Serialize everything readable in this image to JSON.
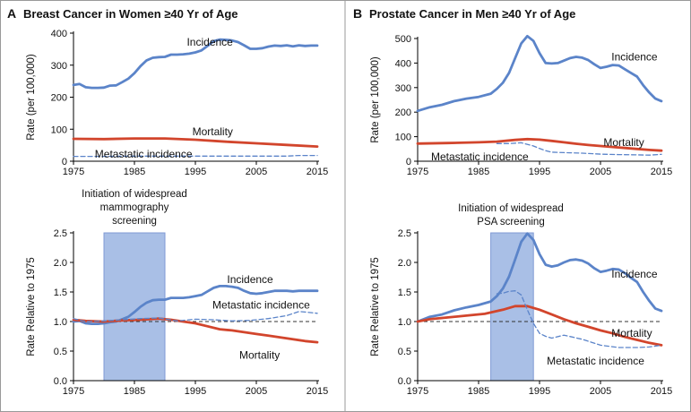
{
  "colors": {
    "incidence": "#5b84c9",
    "mortality": "#d2452c",
    "metastatic": "#5b84c9",
    "band": "#a9bfe6",
    "reference": "#333333",
    "divider": "#999999"
  },
  "panels": [
    {
      "letter": "A",
      "title": "Breast Cancer in Women ≥40 Yr of Age",
      "annotation": [
        "Initiation of widespread",
        "mammography",
        "screening"
      ],
      "band": [
        1980,
        1990
      ]
    },
    {
      "letter": "B",
      "title": "Prostate Cancer in Men ≥40 Yr of Age",
      "annotation": [
        "Initiation of widespread",
        "PSA screening"
      ],
      "band": [
        1987,
        1994
      ]
    }
  ],
  "chart_data": [
    {
      "type": "line",
      "panel": "A-top",
      "ylabel": "Rate (per 100,000)",
      "xlim": [
        1975,
        2015
      ],
      "ylim": [
        0,
        400
      ],
      "xticks": [
        1975,
        1985,
        1995,
        2005,
        2015
      ],
      "yticks": [
        0,
        100,
        200,
        300,
        400
      ],
      "series": [
        {
          "name": "Incidence",
          "style": "solid",
          "x": [
            1975,
            1976,
            1977,
            1978,
            1979,
            1980,
            1981,
            1982,
            1983,
            1984,
            1985,
            1986,
            1987,
            1988,
            1989,
            1990,
            1991,
            1992,
            1993,
            1994,
            1995,
            1996,
            1997,
            1998,
            1999,
            2000,
            2001,
            2002,
            2003,
            2004,
            2005,
            2006,
            2007,
            2008,
            2009,
            2010,
            2011,
            2012,
            2013,
            2014,
            2015
          ],
          "y": [
            238,
            241,
            231,
            229,
            229,
            230,
            236,
            237,
            247,
            258,
            275,
            297,
            315,
            323,
            325,
            326,
            333,
            333,
            334,
            336,
            340,
            346,
            360,
            375,
            380,
            379,
            377,
            372,
            362,
            351,
            351,
            353,
            358,
            361,
            360,
            362,
            359,
            362,
            360,
            361,
            361
          ]
        },
        {
          "name": "Mortality",
          "style": "solid",
          "x": [
            1975,
            1980,
            1985,
            1990,
            1995,
            2000,
            2005,
            2010,
            2015
          ],
          "y": [
            70,
            69,
            71,
            71,
            67,
            61,
            56,
            51,
            46
          ]
        },
        {
          "name": "Metastatic incidence",
          "style": "dashed",
          "x": [
            1975,
            1980,
            1985,
            1990,
            1995,
            2000,
            2005,
            2010,
            2012,
            2015
          ],
          "y": [
            15,
            15,
            16,
            16,
            16,
            16,
            16,
            16,
            18,
            18
          ]
        }
      ]
    },
    {
      "type": "line",
      "panel": "A-bottom",
      "ylabel": "Rate Relative to 1975",
      "xlim": [
        1975,
        2015
      ],
      "ylim": [
        0,
        2.5
      ],
      "xticks": [
        1975,
        1985,
        1995,
        2005,
        2015
      ],
      "yticks": [
        0.0,
        0.5,
        1.0,
        1.5,
        2.0,
        2.5
      ],
      "reference": 1.0,
      "series": [
        {
          "name": "Incidence",
          "style": "solid",
          "x": [
            1975,
            1976,
            1977,
            1978,
            1979,
            1980,
            1981,
            1982,
            1983,
            1984,
            1985,
            1986,
            1987,
            1988,
            1989,
            1990,
            1991,
            1992,
            1993,
            1994,
            1995,
            1996,
            1997,
            1998,
            1999,
            2000,
            2001,
            2002,
            2003,
            2004,
            2005,
            2006,
            2007,
            2008,
            2009,
            2010,
            2011,
            2012,
            2013,
            2014,
            2015
          ],
          "y": [
            1.0,
            1.01,
            0.97,
            0.96,
            0.96,
            0.97,
            0.99,
            1.0,
            1.04,
            1.08,
            1.16,
            1.25,
            1.32,
            1.36,
            1.37,
            1.37,
            1.4,
            1.4,
            1.4,
            1.41,
            1.43,
            1.45,
            1.51,
            1.57,
            1.6,
            1.6,
            1.59,
            1.57,
            1.52,
            1.48,
            1.47,
            1.48,
            1.5,
            1.52,
            1.52,
            1.52,
            1.51,
            1.52,
            1.52,
            1.52,
            1.52
          ]
        },
        {
          "name": "Mortality",
          "style": "solid",
          "x": [
            1975,
            1977,
            1980,
            1983,
            1986,
            1989,
            1991,
            1993,
            1995,
            1997,
            1999,
            2001,
            2003,
            2005,
            2007,
            2009,
            2011,
            2013,
            2015
          ],
          "y": [
            1.03,
            1.01,
            1.0,
            1.02,
            1.03,
            1.05,
            1.03,
            1.0,
            0.97,
            0.92,
            0.87,
            0.85,
            0.82,
            0.79,
            0.76,
            0.73,
            0.7,
            0.67,
            0.65
          ]
        },
        {
          "name": "Metastatic incidence",
          "style": "dashed",
          "x": [
            1975,
            1977,
            1980,
            1983,
            1986,
            1989,
            1992,
            1995,
            1998,
            2001,
            2004,
            2007,
            2010,
            2012,
            2013,
            2015
          ],
          "y": [
            1.05,
            1.0,
            1.01,
            1.03,
            1.05,
            1.06,
            1.01,
            1.04,
            1.03,
            1.01,
            1.02,
            1.05,
            1.1,
            1.17,
            1.16,
            1.14
          ]
        }
      ]
    },
    {
      "type": "line",
      "panel": "B-top",
      "ylabel": "Rate (per 100,000)",
      "xlim": [
        1975,
        2015
      ],
      "ylim": [
        0,
        500
      ],
      "xticks": [
        1975,
        1985,
        1995,
        2005,
        2015
      ],
      "yticks": [
        0,
        100,
        200,
        300,
        400,
        500
      ],
      "series": [
        {
          "name": "Incidence",
          "style": "solid",
          "x": [
            1975,
            1977,
            1979,
            1981,
            1983,
            1985,
            1987,
            1988,
            1989,
            1990,
            1991,
            1992,
            1993,
            1994,
            1995,
            1996,
            1997,
            1998,
            1999,
            2000,
            2001,
            2002,
            2003,
            2004,
            2005,
            2006,
            2007,
            2008,
            2009,
            2010,
            2011,
            2012,
            2013,
            2014,
            2015
          ],
          "y": [
            205,
            220,
            230,
            245,
            255,
            262,
            275,
            295,
            320,
            360,
            420,
            480,
            510,
            490,
            440,
            400,
            398,
            400,
            410,
            420,
            425,
            422,
            412,
            395,
            380,
            385,
            392,
            390,
            375,
            360,
            345,
            310,
            280,
            255,
            245
          ]
        },
        {
          "name": "Mortality",
          "style": "solid",
          "x": [
            1975,
            1980,
            1985,
            1988,
            1991,
            1993,
            1995,
            1997,
            1999,
            2001,
            2003,
            2005,
            2007,
            2009,
            2011,
            2013,
            2015
          ],
          "y": [
            72,
            74,
            77,
            80,
            87,
            90,
            88,
            83,
            77,
            71,
            66,
            62,
            58,
            54,
            50,
            46,
            43
          ]
        },
        {
          "name": "Metastatic incidence",
          "style": "dashed",
          "x": [
            1988,
            1990,
            1992,
            1994,
            1995,
            1996,
            1997,
            1999,
            2002,
            2005,
            2008,
            2011,
            2013,
            2015
          ],
          "y": [
            72,
            72,
            75,
            62,
            52,
            43,
            37,
            35,
            33,
            29,
            27,
            26,
            25,
            28
          ]
        }
      ]
    },
    {
      "type": "line",
      "panel": "B-bottom",
      "ylabel": "Rate Relative to 1975",
      "xlim": [
        1975,
        2015
      ],
      "ylim": [
        0,
        2.5
      ],
      "xticks": [
        1975,
        1985,
        1995,
        2005,
        2015
      ],
      "yticks": [
        0.0,
        0.5,
        1.0,
        1.5,
        2.0,
        2.5
      ],
      "reference": 1.0,
      "series": [
        {
          "name": "Incidence",
          "style": "solid",
          "x": [
            1975,
            1977,
            1979,
            1981,
            1983,
            1985,
            1987,
            1988,
            1989,
            1990,
            1991,
            1992,
            1993,
            1994,
            1995,
            1996,
            1997,
            1998,
            1999,
            2000,
            2001,
            2002,
            2003,
            2004,
            2005,
            2006,
            2007,
            2008,
            2009,
            2010,
            2011,
            2012,
            2013,
            2014,
            2015
          ],
          "y": [
            1.0,
            1.08,
            1.12,
            1.19,
            1.24,
            1.28,
            1.34,
            1.43,
            1.56,
            1.76,
            2.05,
            2.35,
            2.49,
            2.38,
            2.14,
            1.96,
            1.93,
            1.95,
            2.0,
            2.04,
            2.05,
            2.03,
            1.98,
            1.9,
            1.84,
            1.86,
            1.89,
            1.88,
            1.82,
            1.74,
            1.67,
            1.5,
            1.35,
            1.22,
            1.18
          ]
        },
        {
          "name": "Mortality",
          "style": "solid",
          "x": [
            1975,
            1977,
            1980,
            1983,
            1986,
            1989,
            1991,
            1993,
            1995,
            1997,
            1999,
            2001,
            2003,
            2005,
            2007,
            2009,
            2011,
            2013,
            2015
          ],
          "y": [
            1.0,
            1.04,
            1.07,
            1.1,
            1.13,
            1.2,
            1.26,
            1.26,
            1.2,
            1.12,
            1.04,
            0.97,
            0.91,
            0.85,
            0.8,
            0.74,
            0.69,
            0.64,
            0.6
          ]
        },
        {
          "name": "Metastatic incidence",
          "style": "dashed",
          "x": [
            1988,
            1989,
            1990,
            1991,
            1992,
            1993,
            1994,
            1995,
            1996,
            1997,
            1999,
            2002,
            2005,
            2008,
            2011,
            2013,
            2015
          ],
          "y": [
            1.47,
            1.48,
            1.51,
            1.52,
            1.45,
            1.2,
            0.97,
            0.8,
            0.75,
            0.72,
            0.77,
            0.7,
            0.6,
            0.56,
            0.56,
            0.57,
            0.6
          ]
        }
      ]
    }
  ]
}
